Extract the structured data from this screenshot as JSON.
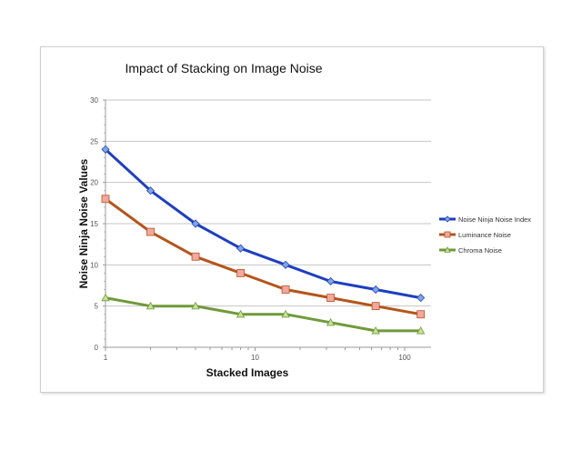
{
  "chart_data": {
    "type": "line",
    "title": "Impact of Stacking on Image Noise",
    "xlabel": "Stacked Images",
    "ylabel": "Noise Ninja Noise Values",
    "x_scale": "log",
    "xlim": [
      1,
      150
    ],
    "ylim": [
      0,
      30
    ],
    "x_ticks": [
      "1",
      "10",
      "100"
    ],
    "y_ticks": [
      "0",
      "5",
      "10",
      "15",
      "20",
      "25",
      "30"
    ],
    "grid": "horizontal",
    "legend_position": "right",
    "x": [
      1,
      2,
      4,
      8,
      16,
      32,
      64,
      128
    ],
    "series": [
      {
        "name": "Noise Ninja Noise Index",
        "values": [
          24,
          19,
          15,
          12,
          10,
          8,
          7,
          6
        ],
        "line_color": "#1f3fbf",
        "marker_color": "#7ea6e0",
        "marker": "diamond"
      },
      {
        "name": "Luminance Noise",
        "values": [
          18,
          14,
          11,
          9,
          7,
          6,
          5,
          4
        ],
        "line_color": "#b5541b",
        "marker_color": "#f2a7a0",
        "marker": "square"
      },
      {
        "name": "Chroma Noise",
        "values": [
          6,
          5,
          5,
          4,
          4,
          3,
          2,
          2
        ],
        "line_color": "#6f9a3a",
        "marker_color": "#c7e09a",
        "marker": "triangle"
      }
    ]
  }
}
